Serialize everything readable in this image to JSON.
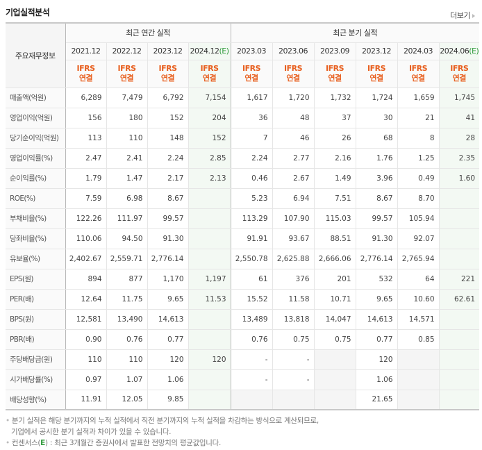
{
  "header": {
    "title": "기업실적분석",
    "more_label": "더보기"
  },
  "table": {
    "row_header_label": "주요재무정보",
    "groups": {
      "annual": "최근 연간 실적",
      "quarterly": "최근 분기 실적"
    },
    "estimate_mark": "(E)",
    "accounting_label_1": "IFRS",
    "accounting_label_2": "연결",
    "annual_periods": [
      "2021.12",
      "2022.12",
      "2023.12",
      "2024.12"
    ],
    "quarterly_periods": [
      "2023.03",
      "2023.06",
      "2023.09",
      "2023.12",
      "2024.03",
      "2024.06"
    ],
    "rows": [
      {
        "label": "매출액(억원)",
        "annual": [
          "6,289",
          "7,479",
          "6,792",
          "7,154"
        ],
        "quarterly": [
          "1,617",
          "1,720",
          "1,732",
          "1,724",
          "1,659",
          "1,745"
        ]
      },
      {
        "label": "영업이익(억원)",
        "annual": [
          "156",
          "180",
          "152",
          "204"
        ],
        "quarterly": [
          "36",
          "48",
          "37",
          "30",
          "21",
          "41"
        ]
      },
      {
        "label": "당기순이익(억원)",
        "annual": [
          "113",
          "110",
          "148",
          "152"
        ],
        "quarterly": [
          "7",
          "46",
          "26",
          "68",
          "8",
          "28"
        ]
      },
      {
        "label": "영업이익률(%)",
        "annual": [
          "2.47",
          "2.41",
          "2.24",
          "2.85"
        ],
        "quarterly": [
          "2.24",
          "2.77",
          "2.16",
          "1.76",
          "1.25",
          "2.35"
        ]
      },
      {
        "label": "순이익률(%)",
        "annual": [
          "1.79",
          "1.47",
          "2.17",
          "2.13"
        ],
        "quarterly": [
          "0.46",
          "2.67",
          "1.49",
          "3.96",
          "0.49",
          "1.60"
        ]
      },
      {
        "label": "ROE(%)",
        "annual": [
          "7.59",
          "6.98",
          "8.67",
          ""
        ],
        "quarterly": [
          "5.23",
          "6.94",
          "7.51",
          "8.67",
          "8.70",
          ""
        ]
      },
      {
        "label": "부채비율(%)",
        "annual": [
          "122.26",
          "111.97",
          "99.57",
          ""
        ],
        "quarterly": [
          "113.29",
          "107.90",
          "115.03",
          "99.57",
          "105.94",
          ""
        ]
      },
      {
        "label": "당좌비율(%)",
        "annual": [
          "110.06",
          "94.50",
          "91.30",
          ""
        ],
        "quarterly": [
          "91.91",
          "93.67",
          "88.51",
          "91.30",
          "92.07",
          ""
        ]
      },
      {
        "label": "유보율(%)",
        "annual": [
          "2,402.67",
          "2,559.71",
          "2,776.14",
          ""
        ],
        "quarterly": [
          "2,550.78",
          "2,625.88",
          "2,666.06",
          "2,776.14",
          "2,765.94",
          ""
        ]
      },
      {
        "label": "EPS(원)",
        "annual": [
          "894",
          "877",
          "1,170",
          "1,197"
        ],
        "quarterly": [
          "61",
          "376",
          "201",
          "532",
          "64",
          "221"
        ]
      },
      {
        "label": "PER(배)",
        "annual": [
          "12.64",
          "11.75",
          "9.65",
          "11.53"
        ],
        "quarterly": [
          "15.52",
          "11.58",
          "10.71",
          "9.65",
          "10.60",
          "62.61"
        ]
      },
      {
        "label": "BPS(원)",
        "annual": [
          "12,581",
          "13,490",
          "14,613",
          ""
        ],
        "quarterly": [
          "13,489",
          "13,818",
          "14,047",
          "14,613",
          "14,571",
          ""
        ]
      },
      {
        "label": "PBR(배)",
        "annual": [
          "0.90",
          "0.76",
          "0.77",
          ""
        ],
        "quarterly": [
          "0.76",
          "0.75",
          "0.75",
          "0.77",
          "0.85",
          ""
        ]
      },
      {
        "label": "주당배당금(원)",
        "annual": [
          "110",
          "110",
          "120",
          "120"
        ],
        "quarterly": [
          "-",
          "-",
          "",
          "120",
          "",
          ""
        ]
      },
      {
        "label": "시가배당률(%)",
        "annual": [
          "0.97",
          "1.07",
          "1.06",
          ""
        ],
        "quarterly": [
          "-",
          "-",
          "",
          "1.06",
          "",
          ""
        ]
      },
      {
        "label": "배당성향(%)",
        "annual": [
          "11.91",
          "12.05",
          "9.85",
          ""
        ],
        "quarterly": [
          "",
          "",
          "",
          "21.65",
          "",
          ""
        ]
      }
    ]
  },
  "notes": {
    "line1": "분기 실적은 해당 분기까지의 누적 실적에서 직전 분기까지의 누적 실적을 차감하는 방식으로 계산되므로,",
    "line2": "기업에서 공시한 분기 실적과 차이가 있을 수 있습니다.",
    "line3_prefix": "컨센서스(",
    "line3_mark": "E",
    "line3_suffix": ") : 최근 3개월간 증권사에서 발표한 전망치의 평균값입니다."
  },
  "colors": {
    "ifrs_orange": "#e86020",
    "estimate_green": "#2e9a3a",
    "estimate_bg": "#f3f9f3",
    "empty_bg": "#f5f5f5"
  }
}
